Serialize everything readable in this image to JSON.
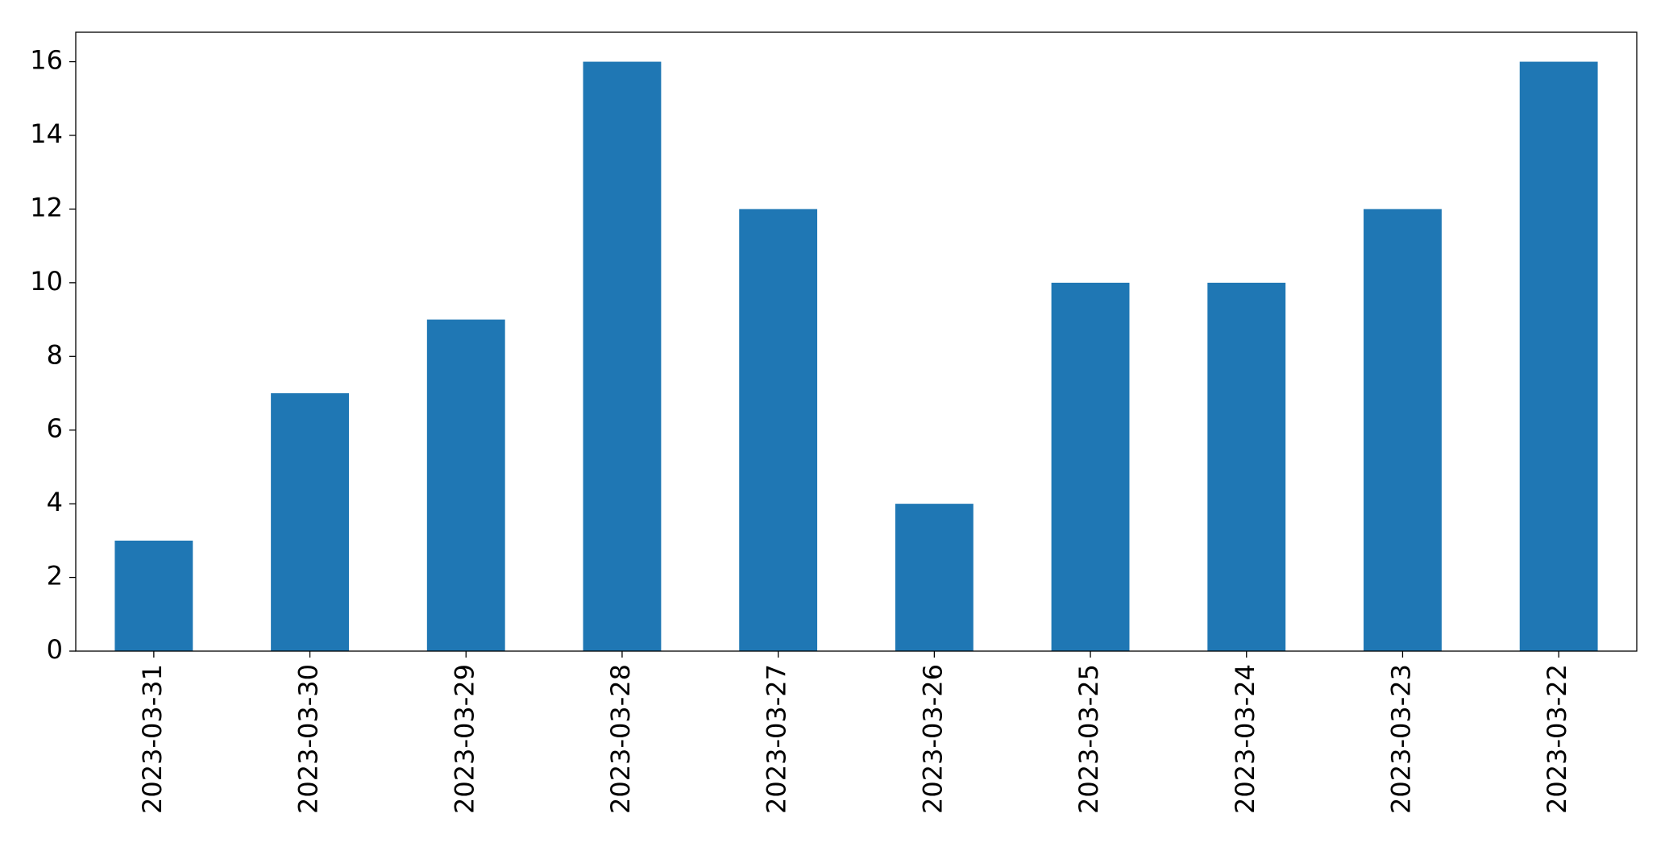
{
  "chart_data": {
    "type": "bar",
    "categories": [
      "2023-03-31",
      "2023-03-30",
      "2023-03-29",
      "2023-03-28",
      "2023-03-27",
      "2023-03-26",
      "2023-03-25",
      "2023-03-24",
      "2023-03-23",
      "2023-03-22"
    ],
    "values": [
      3,
      7,
      9,
      16,
      12,
      4,
      10,
      10,
      12,
      16
    ],
    "color": "#1f77b4",
    "ylim": [
      0,
      16.8
    ],
    "yticks": [
      0,
      2,
      4,
      6,
      8,
      10,
      12,
      14,
      16
    ],
    "grid": false
  }
}
